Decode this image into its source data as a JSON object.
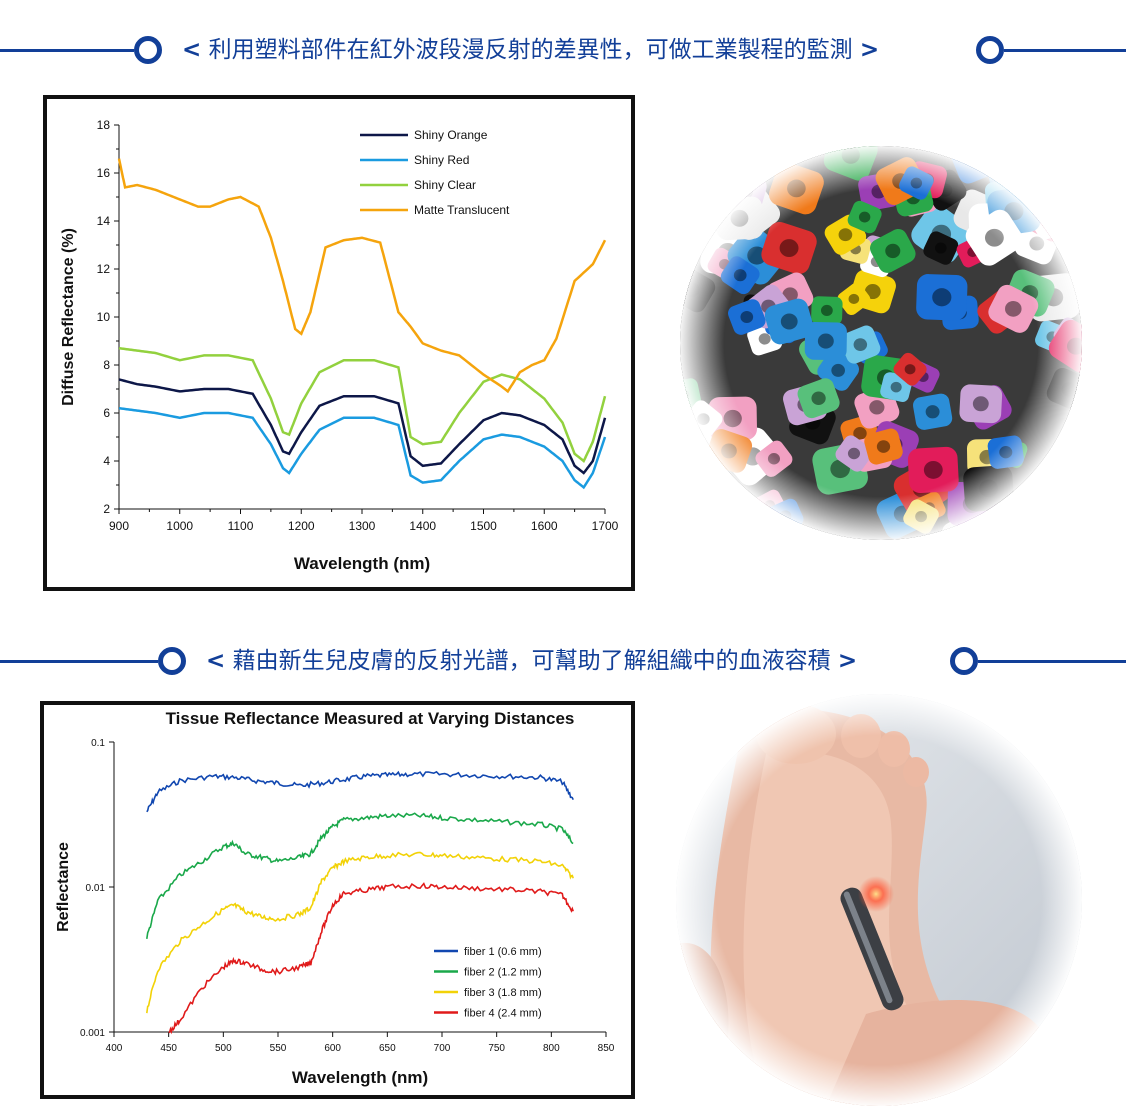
{
  "headers": {
    "top": {
      "open": "<",
      "text": "利用塑料部件在紅外波段漫反射的差異性，可做工業製程的監測",
      "close": ">"
    },
    "bottom": {
      "open": "<",
      "text": "藉由新生兒皮膚的反射光譜，可幫助了解組織中的血液容積",
      "close": ">"
    }
  },
  "colors": {
    "accent": "#123f98"
  },
  "photos": {
    "top": "plastic-beads-photo",
    "bottom": "infant-foot-probe-photo"
  },
  "chart_data": [
    {
      "type": "line",
      "title": "",
      "xlabel": "Wavelength (nm)",
      "ylabel": "Diffuse Reflectance (%)",
      "xlim": [
        900,
        1700
      ],
      "ylim": [
        2,
        18
      ],
      "xticks": [
        "900",
        "1000",
        "1100",
        "1200",
        "1300",
        "1400",
        "1500",
        "1600",
        "1700"
      ],
      "yticks": [
        "2",
        "4",
        "6",
        "8",
        "10",
        "12",
        "14",
        "16",
        "18"
      ],
      "legend_position": "top-right",
      "series": [
        {
          "name": "Shiny Orange",
          "color": "#0d1748",
          "x": [
            900,
            930,
            960,
            1000,
            1040,
            1080,
            1120,
            1150,
            1170,
            1180,
            1200,
            1230,
            1270,
            1320,
            1360,
            1380,
            1400,
            1430,
            1460,
            1500,
            1530,
            1560,
            1600,
            1630,
            1650,
            1665,
            1680,
            1700
          ],
          "y": [
            7.4,
            7.2,
            7.1,
            6.9,
            7.0,
            7.0,
            6.8,
            5.5,
            4.4,
            4.3,
            5.2,
            6.3,
            6.7,
            6.7,
            6.4,
            4.2,
            3.8,
            3.9,
            4.7,
            5.7,
            6.0,
            5.9,
            5.5,
            4.9,
            3.8,
            3.5,
            4.0,
            5.8
          ]
        },
        {
          "name": "Shiny Red",
          "color": "#1a9be0",
          "x": [
            900,
            930,
            960,
            1000,
            1040,
            1080,
            1120,
            1150,
            1170,
            1180,
            1200,
            1230,
            1270,
            1320,
            1360,
            1380,
            1400,
            1430,
            1460,
            1500,
            1530,
            1560,
            1600,
            1630,
            1650,
            1665,
            1680,
            1700
          ],
          "y": [
            6.2,
            6.1,
            6.0,
            5.8,
            6.0,
            6.0,
            5.8,
            4.7,
            3.7,
            3.5,
            4.3,
            5.3,
            5.8,
            5.8,
            5.5,
            3.4,
            3.1,
            3.2,
            4.0,
            4.9,
            5.1,
            5.0,
            4.6,
            4.0,
            3.2,
            2.9,
            3.5,
            5.0
          ]
        },
        {
          "name": "Shiny Clear",
          "color": "#92d13e",
          "x": [
            900,
            930,
            960,
            1000,
            1040,
            1080,
            1120,
            1150,
            1170,
            1180,
            1200,
            1230,
            1270,
            1320,
            1360,
            1380,
            1400,
            1430,
            1460,
            1500,
            1530,
            1560,
            1600,
            1630,
            1650,
            1665,
            1680,
            1700
          ],
          "y": [
            8.7,
            8.6,
            8.5,
            8.2,
            8.4,
            8.4,
            8.2,
            6.6,
            5.2,
            5.1,
            6.4,
            7.7,
            8.2,
            8.2,
            7.9,
            5.0,
            4.7,
            4.8,
            6.0,
            7.3,
            7.6,
            7.4,
            6.6,
            5.6,
            4.3,
            4.0,
            4.8,
            6.7
          ]
        },
        {
          "name": "Matte Translucent",
          "color": "#f5a40d",
          "x": [
            900,
            910,
            930,
            960,
            1000,
            1030,
            1050,
            1080,
            1100,
            1130,
            1150,
            1170,
            1190,
            1200,
            1215,
            1240,
            1270,
            1300,
            1330,
            1360,
            1380,
            1400,
            1430,
            1460,
            1500,
            1530,
            1540,
            1560,
            1580,
            1600,
            1620,
            1650,
            1680,
            1700
          ],
          "y": [
            16.6,
            15.4,
            15.5,
            15.3,
            14.9,
            14.6,
            14.6,
            14.9,
            15.0,
            14.6,
            13.3,
            11.5,
            9.5,
            9.3,
            10.2,
            12.9,
            13.2,
            13.3,
            13.1,
            10.2,
            9.6,
            8.9,
            8.6,
            8.4,
            7.6,
            7.1,
            6.9,
            7.7,
            8.0,
            8.2,
            9.1,
            11.5,
            12.2,
            13.2
          ]
        }
      ]
    },
    {
      "type": "line",
      "title": "Tissue Reflectance Measured at Varying Distances",
      "xlabel": "Wavelength (nm)",
      "ylabel": "Reflectance",
      "xlim": [
        400,
        850
      ],
      "ylim": [
        0.001,
        0.1
      ],
      "yscale": "log",
      "xticks": [
        "400",
        "450",
        "500",
        "550",
        "600",
        "650",
        "700",
        "750",
        "800",
        "850"
      ],
      "yticks": [
        "0.001",
        "0.01",
        "0.1"
      ],
      "legend_position": "bottom-right",
      "series": [
        {
          "name": "fiber 1 (0.6 mm)",
          "color": "#1147b0",
          "x": [
            430,
            440,
            460,
            490,
            510,
            530,
            550,
            570,
            590,
            610,
            630,
            650,
            670,
            700,
            730,
            760,
            790,
            810,
            820
          ],
          "y": [
            0.033,
            0.045,
            0.054,
            0.058,
            0.057,
            0.054,
            0.052,
            0.05,
            0.052,
            0.055,
            0.058,
            0.059,
            0.06,
            0.06,
            0.059,
            0.058,
            0.057,
            0.053,
            0.04
          ]
        },
        {
          "name": "fiber 2 (1.2 mm)",
          "color": "#1aa84a",
          "x": [
            430,
            440,
            460,
            480,
            500,
            510,
            520,
            535,
            550,
            570,
            580,
            590,
            600,
            610,
            630,
            650,
            680,
            700,
            730,
            760,
            790,
            810,
            820
          ],
          "y": [
            0.0045,
            0.008,
            0.012,
            0.015,
            0.019,
            0.02,
            0.017,
            0.016,
            0.015,
            0.016,
            0.017,
            0.022,
            0.026,
            0.029,
            0.03,
            0.031,
            0.031,
            0.03,
            0.029,
            0.028,
            0.027,
            0.025,
            0.02
          ]
        },
        {
          "name": "fiber 3 (1.8 mm)",
          "color": "#f2d207",
          "x": [
            430,
            440,
            460,
            480,
            500,
            510,
            520,
            535,
            550,
            570,
            580,
            590,
            600,
            610,
            630,
            650,
            680,
            700,
            730,
            760,
            790,
            810,
            820
          ],
          "y": [
            0.0014,
            0.0027,
            0.0042,
            0.0055,
            0.007,
            0.0075,
            0.0068,
            0.0062,
            0.006,
            0.0065,
            0.0072,
            0.011,
            0.0135,
            0.015,
            0.016,
            0.0165,
            0.0168,
            0.0165,
            0.016,
            0.0155,
            0.015,
            0.014,
            0.0115
          ]
        },
        {
          "name": "fiber 4 (2.4 mm)",
          "color": "#e01a1a",
          "x": [
            450,
            460,
            480,
            500,
            510,
            520,
            535,
            550,
            570,
            580,
            590,
            600,
            610,
            630,
            650,
            680,
            700,
            730,
            760,
            790,
            810,
            820
          ],
          "y": [
            0.001,
            0.0012,
            0.002,
            0.0028,
            0.0031,
            0.003,
            0.0027,
            0.0026,
            0.0028,
            0.003,
            0.005,
            0.0075,
            0.009,
            0.0095,
            0.01,
            0.0102,
            0.01,
            0.0098,
            0.0096,
            0.0093,
            0.0088,
            0.0068
          ]
        }
      ]
    }
  ]
}
